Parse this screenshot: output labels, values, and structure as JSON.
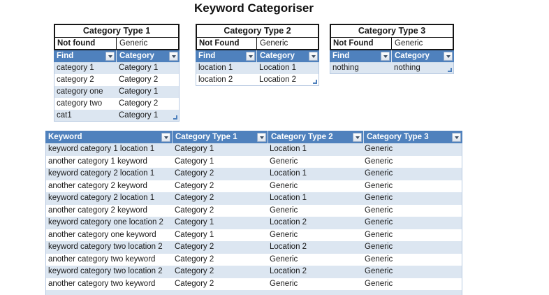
{
  "page": {
    "title": "Keyword Categoriser"
  },
  "colors": {
    "header_bg": "#4F81BD",
    "header_text": "#FFFFFF",
    "banded_row_bg": "#DCE6F1",
    "plain_row_bg": "#FFFFFF",
    "lookup_box_border": "#161616",
    "data_border": "#B7C9E1",
    "text": "#1A1A1A"
  },
  "icons": {
    "filter_dropdown": "chevron-down-icon",
    "resize_handle": "table-resize-handle"
  },
  "lookup_tables": [
    {
      "id": "category-type-1",
      "title": "Category Type 1",
      "not_found": {
        "label": "Not found",
        "value": "Generic"
      },
      "columns": [
        "Find",
        "Category"
      ],
      "rows": [
        [
          "category 1",
          "Category 1"
        ],
        [
          "category 2",
          "Category 2"
        ],
        [
          "category one",
          "Category 1"
        ],
        [
          "category two",
          "Category 2"
        ],
        [
          "cat1",
          "Category 1"
        ]
      ]
    },
    {
      "id": "category-type-2",
      "title": "Category Type 2",
      "not_found": {
        "label": "Not Found",
        "value": "Generic"
      },
      "columns": [
        "Find",
        "Category"
      ],
      "rows": [
        [
          "location 1",
          "Location 1"
        ],
        [
          "location 2",
          "Location 2"
        ]
      ]
    },
    {
      "id": "category-type-3",
      "title": "Category Type 3",
      "not_found": {
        "label": "Not Found",
        "value": "Generic"
      },
      "columns": [
        "Find",
        "Category"
      ],
      "rows": [
        [
          "nothing",
          "nothing"
        ]
      ]
    }
  ],
  "main_table": {
    "columns": [
      "Keyword",
      "Category Type 1",
      "Category Type 2",
      "Category Type 3"
    ],
    "rows": [
      [
        "keyword category 1 location 1",
        "Category 1",
        "Location 1",
        "Generic"
      ],
      [
        "another category 1 keyword",
        "Category 1",
        "Generic",
        "Generic"
      ],
      [
        "keyword category 2 location 1",
        "Category 2",
        "Location 1",
        "Generic"
      ],
      [
        "another category 2 keyword",
        "Category 2",
        "Generic",
        "Generic"
      ],
      [
        "keyword category 2 location 1",
        "Category 2",
        "Location 1",
        "Generic"
      ],
      [
        "another category 2 keyword",
        "Category 2",
        "Generic",
        "Generic"
      ],
      [
        "keyword category one location 2",
        "Category 1",
        "Location 2",
        "Generic"
      ],
      [
        "another category one keyword",
        "Category 1",
        "Generic",
        "Generic"
      ],
      [
        "keyword category two location 2",
        "Category 2",
        "Location 2",
        "Generic"
      ],
      [
        "another category two keyword",
        "Category 2",
        "Generic",
        "Generic"
      ],
      [
        "keyword category two location 2",
        "Category 2",
        "Location 2",
        "Generic"
      ],
      [
        "another category two keyword",
        "Category 2",
        "Generic",
        "Generic"
      ]
    ],
    "partial_row_visible": true
  }
}
